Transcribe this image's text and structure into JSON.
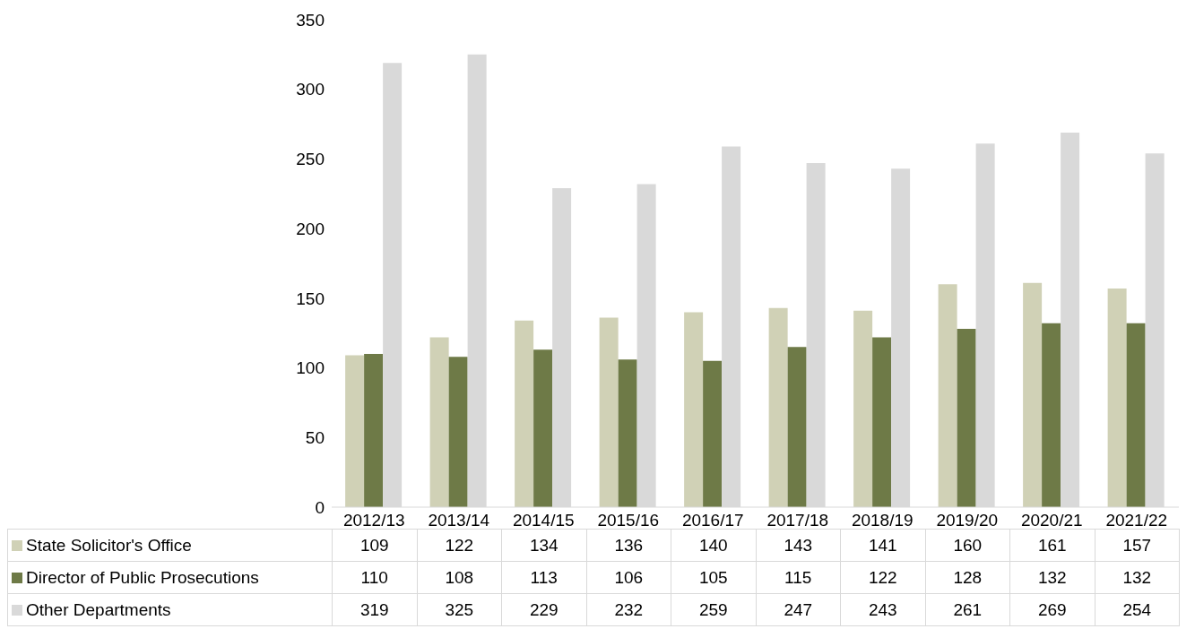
{
  "chart_data": {
    "type": "bar",
    "categories": [
      "2012/13",
      "2013/14",
      "2014/15",
      "2015/16",
      "2016/17",
      "2017/18",
      "2018/19",
      "2019/20",
      "2020/21",
      "2021/22"
    ],
    "series": [
      {
        "name": "State Solicitor's Office",
        "color": "#d0d1b6",
        "values": [
          109,
          122,
          134,
          136,
          140,
          143,
          141,
          160,
          161,
          157
        ]
      },
      {
        "name": "Director of Public Prosecutions",
        "color": "#6e7a47",
        "values": [
          110,
          108,
          113,
          106,
          105,
          115,
          122,
          128,
          132,
          132
        ]
      },
      {
        "name": "Other Departments",
        "color": "#d9d9d9",
        "values": [
          319,
          325,
          229,
          232,
          259,
          247,
          243,
          261,
          269,
          254
        ]
      }
    ],
    "ylim": [
      0,
      350
    ],
    "yticks": [
      0,
      50,
      100,
      150,
      200,
      250,
      300,
      350
    ],
    "grid": false,
    "legend": "bottom",
    "data_labels": true
  }
}
